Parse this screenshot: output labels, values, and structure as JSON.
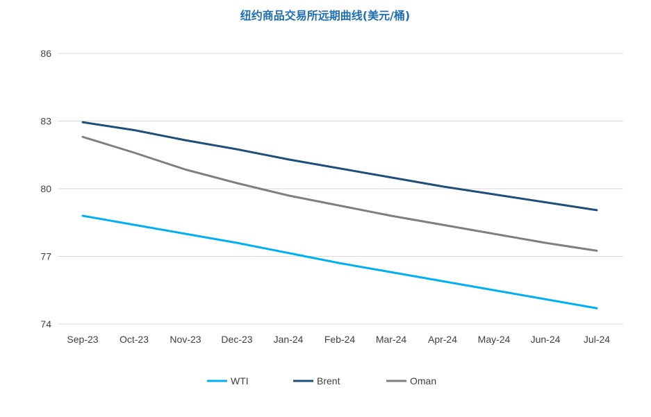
{
  "chart_data": {
    "type": "line",
    "title": "纽约商品交易所远期曲线(美元/桶)",
    "xlabel": "",
    "ylabel": "",
    "categories": [
      "Sep-23",
      "Oct-23",
      "Nov-23",
      "Dec-23",
      "Jan-24",
      "Feb-24",
      "Mar-24",
      "Apr-24",
      "May-24",
      "Jun-24",
      "Jul-24"
    ],
    "yticks": [
      "86",
      "83",
      "80",
      "77",
      "74"
    ],
    "ylim": [
      74,
      86
    ],
    "grid": true,
    "legend_position": "bottom",
    "series": [
      {
        "name": "WTI",
        "color": "#00b0f0",
        "values": [
          78.8,
          78.4,
          78.0,
          77.6,
          77.15,
          76.7,
          76.3,
          75.9,
          75.5,
          75.1,
          74.7
        ]
      },
      {
        "name": "Brent",
        "color": "#1f4e79",
        "values": [
          82.95,
          82.6,
          82.15,
          81.75,
          81.3,
          80.9,
          80.5,
          80.1,
          79.75,
          79.4,
          79.05
        ]
      },
      {
        "name": "Oman",
        "color": "#7f7f7f",
        "values": [
          82.3,
          81.6,
          80.85,
          80.25,
          79.7,
          79.25,
          78.8,
          78.4,
          78.0,
          77.6,
          77.25
        ]
      }
    ]
  }
}
